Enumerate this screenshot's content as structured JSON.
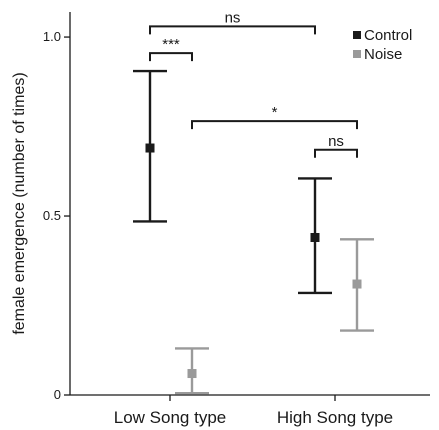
{
  "chart_data": {
    "type": "scatter",
    "title": "",
    "xlabel": "",
    "ylabel": "female emergence (number of times)",
    "ylim": [
      0,
      1.07
    ],
    "yticks": [
      {
        "value": 0,
        "label": "0"
      },
      {
        "value": 0.5,
        "label": "0.5"
      },
      {
        "value": 1.0,
        "label": "1.0"
      }
    ],
    "categories": [
      "Low Song type",
      "High Song type"
    ],
    "grid": false,
    "legend_position": "top-right",
    "series": [
      {
        "name": "Control",
        "color": "#1a1a1a",
        "values": [
          0.69,
          0.44
        ],
        "lower": [
          0.485,
          0.285
        ],
        "upper": [
          0.905,
          0.605
        ]
      },
      {
        "name": "Noise",
        "color": "#9a9a9a",
        "values": [
          0.06,
          0.31
        ],
        "lower": [
          0.005,
          0.18
        ],
        "upper": [
          0.13,
          0.435
        ]
      }
    ],
    "annotations": [
      {
        "label": "ns",
        "from": {
          "category": 0,
          "series": 0
        },
        "to": {
          "category": 1,
          "series": 0
        },
        "level": 1.03
      },
      {
        "label": "***",
        "from": {
          "category": 0,
          "series": 0
        },
        "to": {
          "category": 0,
          "series": 1
        },
        "level": 0.955
      },
      {
        "label": "*",
        "from": {
          "category": 0,
          "series": 1
        },
        "to": {
          "category": 1,
          "series": 1
        },
        "level": 0.765
      },
      {
        "label": "ns",
        "from": {
          "category": 1,
          "series": 0
        },
        "to": {
          "category": 1,
          "series": 1
        },
        "level": 0.685
      }
    ]
  }
}
